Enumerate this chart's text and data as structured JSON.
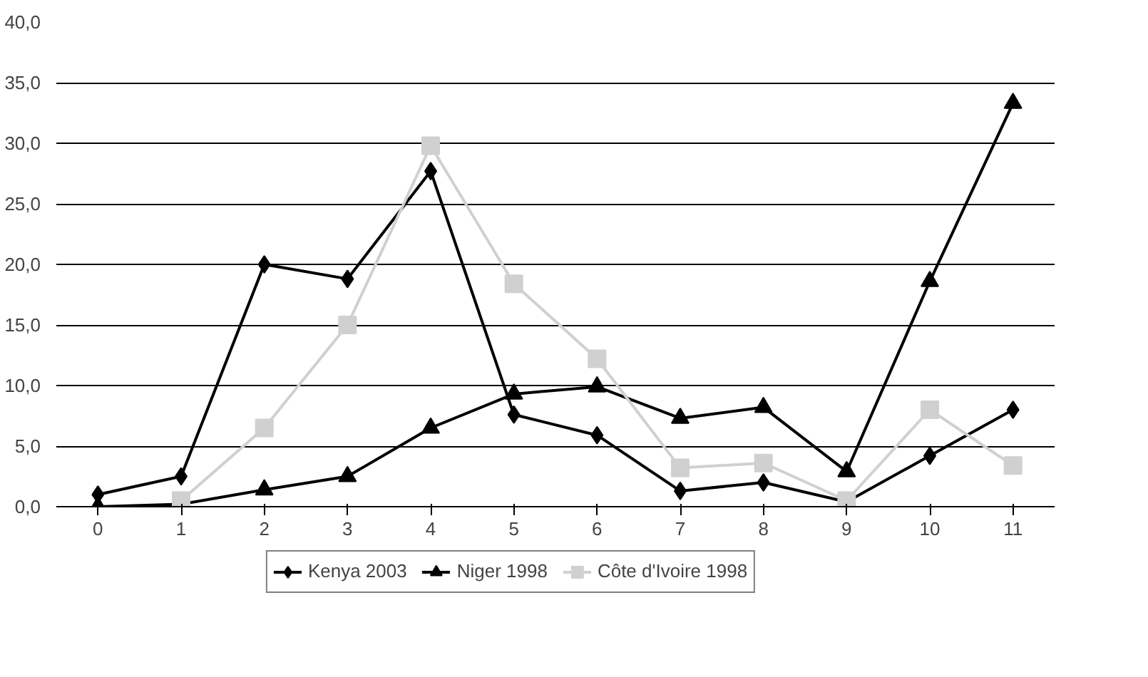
{
  "chart_data": {
    "type": "line",
    "categories": [
      "0",
      "1",
      "2",
      "3",
      "4",
      "5",
      "6",
      "7",
      "8",
      "9",
      "10",
      "11"
    ],
    "series": [
      {
        "name": "Kenya 2003",
        "color": "#000000",
        "marker": "diamond",
        "values": [
          1.0,
          2.5,
          20.0,
          18.8,
          27.7,
          7.6,
          5.9,
          1.3,
          2.0,
          0.4,
          4.2,
          8.0
        ]
      },
      {
        "name": "Niger 1998",
        "color": "#000000",
        "marker": "triangle",
        "values": [
          0.0,
          0.2,
          1.4,
          2.5,
          6.5,
          9.3,
          9.9,
          7.3,
          8.2,
          2.9,
          18.6,
          33.3
        ]
      },
      {
        "name": "Côte d'Ivoire 1998",
        "color": "#d0d0d0",
        "marker": "square",
        "values": [
          null,
          0.5,
          6.5,
          15.0,
          29.8,
          18.4,
          12.2,
          3.2,
          3.6,
          0.5,
          8.0,
          3.4
        ]
      }
    ],
    "ylim": [
      0,
      40
    ],
    "yticks": [
      {
        "value": 0,
        "label": "0,0"
      },
      {
        "value": 5,
        "label": "5,0"
      },
      {
        "value": 10,
        "label": "10,0"
      },
      {
        "value": 15,
        "label": "15,0"
      },
      {
        "value": 20,
        "label": "20,0"
      },
      {
        "value": 25,
        "label": "25,0"
      },
      {
        "value": 30,
        "label": "30,0"
      },
      {
        "value": 35,
        "label": "35,0"
      },
      {
        "value": 40,
        "label": "40,0"
      }
    ],
    "grid": "y",
    "legend": "bottom",
    "line_style": "solid"
  }
}
